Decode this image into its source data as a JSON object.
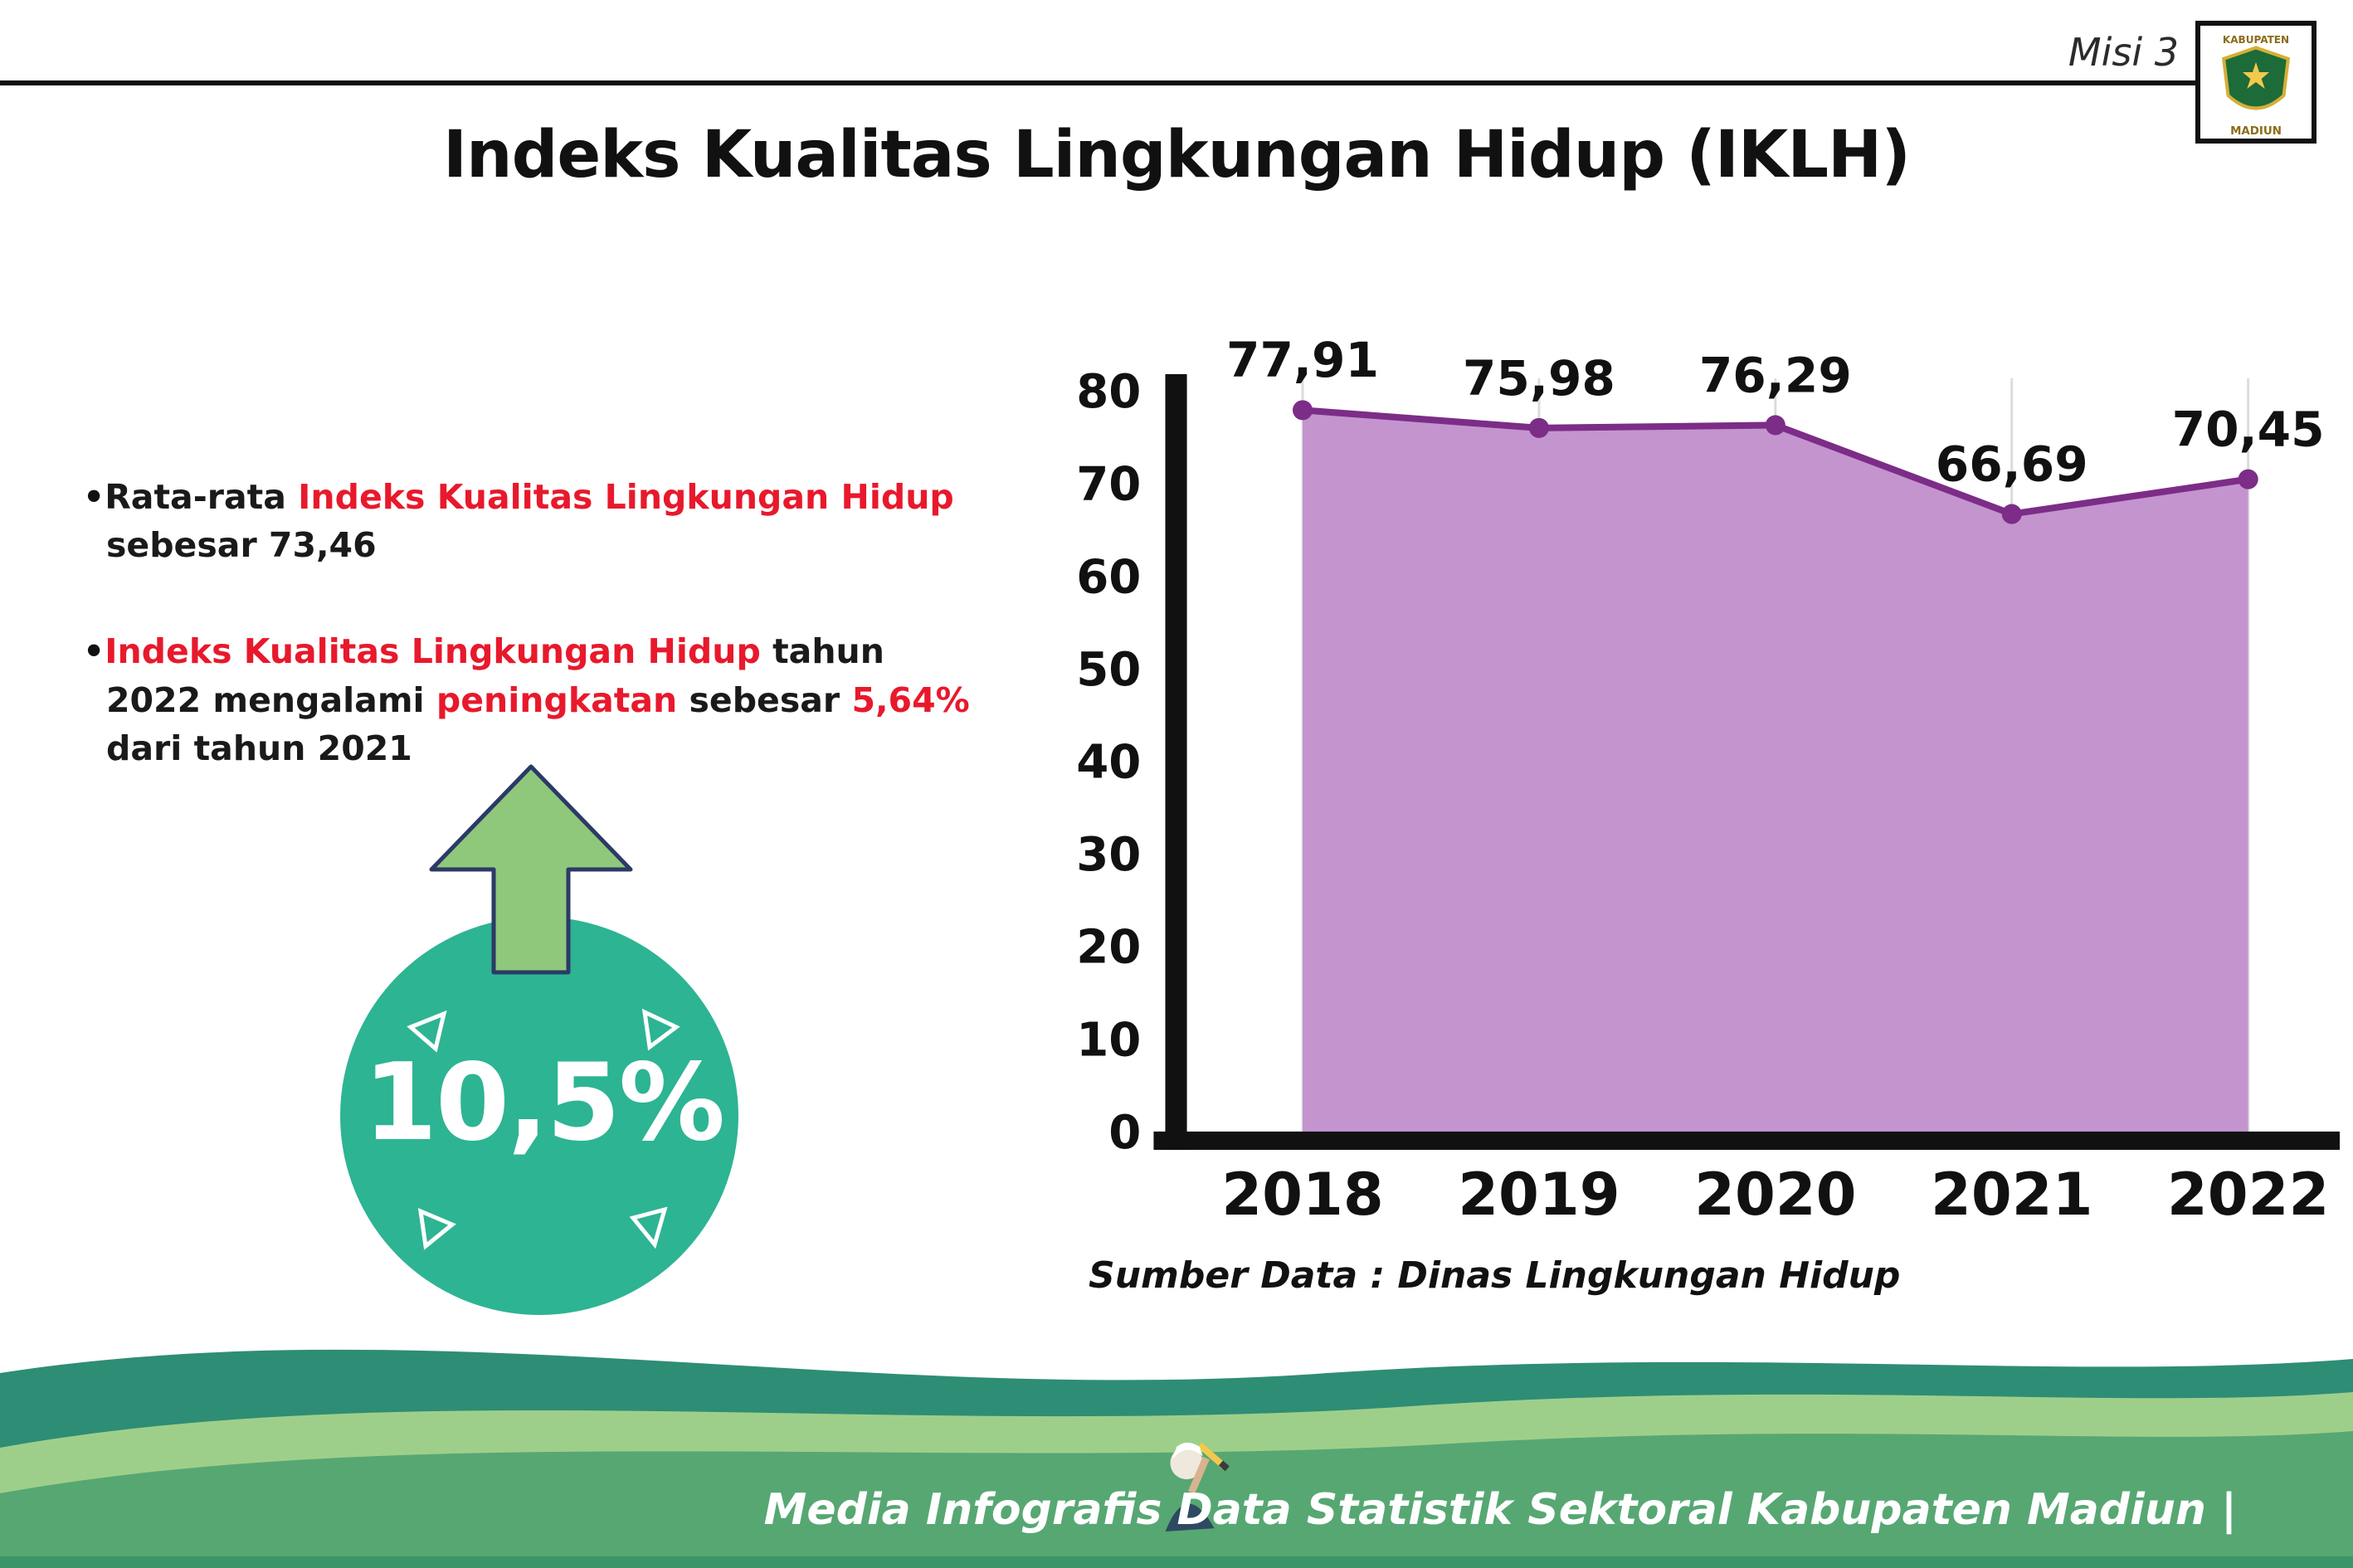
{
  "header": {
    "misi": "Misi 3",
    "title": "Indeks Kualitas Lingkungan Hidup (IKLH)",
    "logo": {
      "top_text": "KABUPATEN",
      "bottom_text": "MADIUN"
    }
  },
  "bullet_char": "•",
  "bullets": [
    {
      "segments": [
        {
          "text": "Rata-rata ",
          "color": "#1a1a1a"
        },
        {
          "text": "Indeks Kualitas Lingkungan Hidup",
          "color": "#e8192c"
        },
        {
          "text": " sebesar 73,46",
          "color": "#1a1a1a"
        }
      ]
    },
    {
      "segments": [
        {
          "text": "Indeks Kualitas Lingkungan Hidup",
          "color": "#e8192c"
        },
        {
          "text": " tahun 2022 mengalami ",
          "color": "#1a1a1a"
        },
        {
          "text": "peningkatan",
          "color": "#e8192c"
        },
        {
          "text": " sebesar ",
          "color": "#1a1a1a"
        },
        {
          "text": "5,64%",
          "color": "#e8192c"
        },
        {
          "text": " dari tahun 2021",
          "color": "#1a1a1a"
        }
      ]
    }
  ],
  "badge": {
    "value": "10,5%",
    "circle_color": "#2db493",
    "arrow_color": "#8fc87b",
    "arrow_outline": "#2b3a67"
  },
  "chart_data": {
    "type": "area",
    "categories": [
      "2018",
      "2019",
      "2020",
      "2021",
      "2022"
    ],
    "values": [
      77.91,
      75.98,
      76.29,
      66.69,
      70.45
    ],
    "value_labels": [
      "77,91",
      "75,98",
      "76,29",
      "66,69",
      "70,45"
    ],
    "title": "",
    "xlabel": "",
    "ylabel": "",
    "ylim": [
      0,
      80
    ],
    "yticks": [
      0,
      10,
      20,
      30,
      40,
      50,
      60,
      70,
      80
    ],
    "grid": "vertical-light",
    "legend": "none",
    "fill_color": "#c494cf",
    "line_color": "#7c2d87",
    "axis_color": "#111111",
    "grid_color": "#dcdcdc",
    "source": "Sumber Data : Dinas Lingkungan Hidup"
  },
  "footer": {
    "credit": "Media Infografis Data Statistik Sektoral Kabupaten Madiun |",
    "colors": {
      "teal": "#2e8d75",
      "light_green": "#9ecf8a",
      "main_green": "#57a773",
      "strip": "#3c9468"
    }
  }
}
